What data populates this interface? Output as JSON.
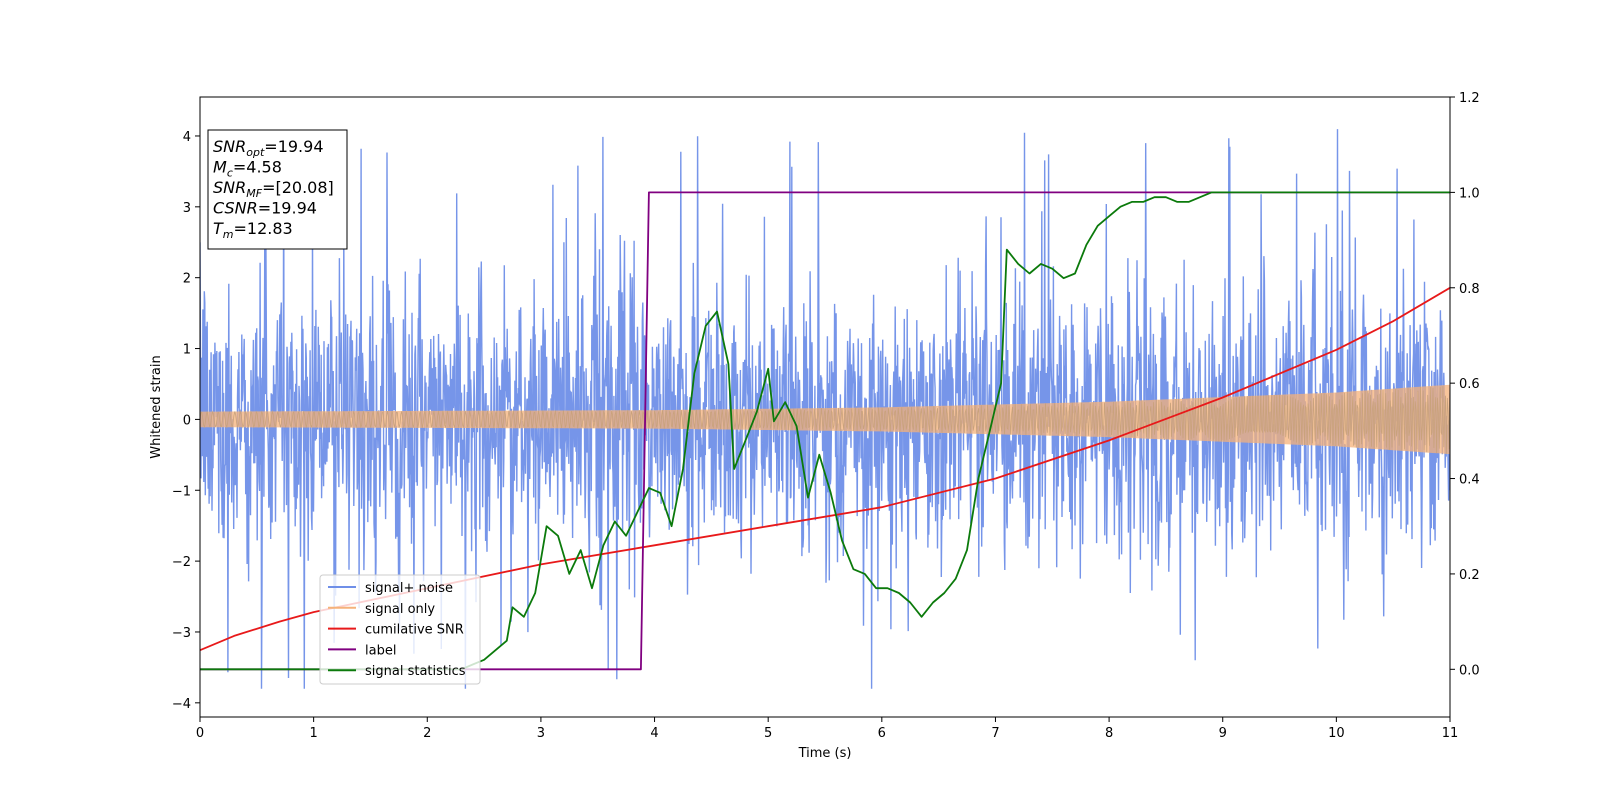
{
  "chart_data": {
    "type": "line",
    "xlabel": "Time (s)",
    "ylabel": "Whitened strain",
    "xlim": [
      0,
      11
    ],
    "ylim": [
      -4.2,
      4.55
    ],
    "ylim_right": [
      -0.1,
      1.2
    ],
    "x_ticks": [
      "0",
      "1",
      "2",
      "3",
      "4",
      "5",
      "6",
      "7",
      "8",
      "9",
      "10",
      "11"
    ],
    "y_ticks": [
      "4",
      "3",
      "2",
      "1",
      "0",
      "−1",
      "−2",
      "−3",
      "−4"
    ],
    "y_right_ticks": [
      "1.2",
      "1.0",
      "0.8",
      "0.6",
      "0.4",
      "0.2",
      "0.0"
    ],
    "grid": false,
    "legend_position": "lower-left",
    "info_box": {
      "lines": [
        {
          "name": "SNR",
          "sub": "opt",
          "value": "=19.94"
        },
        {
          "name": "M",
          "sub": "c",
          "value": "=4.58"
        },
        {
          "name": "SNR",
          "sub": "MF",
          "value": "=[20.08]"
        },
        {
          "name": "CSNR",
          "sub": "",
          "value": "=19.94"
        },
        {
          "name": "T",
          "sub": "m",
          "value": "=12.83"
        }
      ]
    },
    "series": [
      {
        "name": "signal+ noise",
        "color": "#6f8fe8",
        "axis": "left",
        "description_values": {
          "sigma": 0.9,
          "range": [
            -3.8,
            4.17
          ]
        }
      },
      {
        "name": "signal only",
        "color": "#f5b27a",
        "axis": "left",
        "envelope_amplitude": [
          [
            0,
            0.11
          ],
          [
            4,
            0.13
          ],
          [
            6,
            0.17
          ],
          [
            8,
            0.25
          ],
          [
            10,
            0.38
          ],
          [
            11,
            0.49
          ]
        ]
      },
      {
        "name": "cumilative SNR",
        "color": "#e8191a",
        "axis": "right",
        "points": [
          [
            0,
            0.04
          ],
          [
            0.3,
            0.07
          ],
          [
            0.7,
            0.1
          ],
          [
            1,
            0.12
          ],
          [
            2,
            0.17
          ],
          [
            3,
            0.22
          ],
          [
            4,
            0.26
          ],
          [
            5,
            0.3
          ],
          [
            6,
            0.34
          ],
          [
            7,
            0.4
          ],
          [
            8,
            0.48
          ],
          [
            9,
            0.57
          ],
          [
            10,
            0.67
          ],
          [
            10.5,
            0.73
          ],
          [
            11,
            0.8
          ]
        ]
      },
      {
        "name": "label",
        "color": "#800080",
        "axis": "right",
        "points": [
          [
            0,
            0.0
          ],
          [
            3.88,
            0.0
          ],
          [
            3.95,
            1.0
          ],
          [
            11,
            1.0
          ]
        ]
      },
      {
        "name": "signal statistics",
        "color": "#0b7a0b",
        "axis": "right",
        "points": [
          [
            0,
            0.0
          ],
          [
            0.5,
            0.0
          ],
          [
            1,
            0.0
          ],
          [
            1.5,
            0.0
          ],
          [
            2,
            0.0
          ],
          [
            2.3,
            0.0
          ],
          [
            2.4,
            0.01
          ],
          [
            2.5,
            0.02
          ],
          [
            2.6,
            0.04
          ],
          [
            2.7,
            0.06
          ],
          [
            2.75,
            0.13
          ],
          [
            2.85,
            0.11
          ],
          [
            2.95,
            0.16
          ],
          [
            3.05,
            0.3
          ],
          [
            3.15,
            0.28
          ],
          [
            3.25,
            0.2
          ],
          [
            3.35,
            0.25
          ],
          [
            3.45,
            0.17
          ],
          [
            3.55,
            0.26
          ],
          [
            3.65,
            0.31
          ],
          [
            3.75,
            0.28
          ],
          [
            3.85,
            0.33
          ],
          [
            3.95,
            0.38
          ],
          [
            4.05,
            0.37
          ],
          [
            4.15,
            0.3
          ],
          [
            4.25,
            0.42
          ],
          [
            4.35,
            0.62
          ],
          [
            4.45,
            0.72
          ],
          [
            4.55,
            0.75
          ],
          [
            4.65,
            0.64
          ],
          [
            4.7,
            0.42
          ],
          [
            4.8,
            0.48
          ],
          [
            4.9,
            0.54
          ],
          [
            5.0,
            0.63
          ],
          [
            5.05,
            0.52
          ],
          [
            5.15,
            0.56
          ],
          [
            5.25,
            0.51
          ],
          [
            5.35,
            0.36
          ],
          [
            5.45,
            0.45
          ],
          [
            5.55,
            0.37
          ],
          [
            5.65,
            0.27
          ],
          [
            5.75,
            0.21
          ],
          [
            5.85,
            0.2
          ],
          [
            5.95,
            0.17
          ],
          [
            6.05,
            0.17
          ],
          [
            6.15,
            0.16
          ],
          [
            6.25,
            0.14
          ],
          [
            6.35,
            0.11
          ],
          [
            6.45,
            0.14
          ],
          [
            6.55,
            0.16
          ],
          [
            6.65,
            0.19
          ],
          [
            6.75,
            0.25
          ],
          [
            6.85,
            0.4
          ],
          [
            6.95,
            0.5
          ],
          [
            7.05,
            0.6
          ],
          [
            7.1,
            0.88
          ],
          [
            7.2,
            0.85
          ],
          [
            7.3,
            0.83
          ],
          [
            7.4,
            0.85
          ],
          [
            7.5,
            0.84
          ],
          [
            7.6,
            0.82
          ],
          [
            7.7,
            0.83
          ],
          [
            7.8,
            0.89
          ],
          [
            7.9,
            0.93
          ],
          [
            8.0,
            0.95
          ],
          [
            8.1,
            0.97
          ],
          [
            8.2,
            0.98
          ],
          [
            8.3,
            0.98
          ],
          [
            8.4,
            0.99
          ],
          [
            8.5,
            0.99
          ],
          [
            8.6,
            0.98
          ],
          [
            8.7,
            0.98
          ],
          [
            8.8,
            0.99
          ],
          [
            8.9,
            1.0
          ],
          [
            9,
            1.0
          ],
          [
            9.5,
            1.0
          ],
          [
            10,
            1.0
          ],
          [
            11,
            1.0
          ]
        ]
      }
    ]
  }
}
